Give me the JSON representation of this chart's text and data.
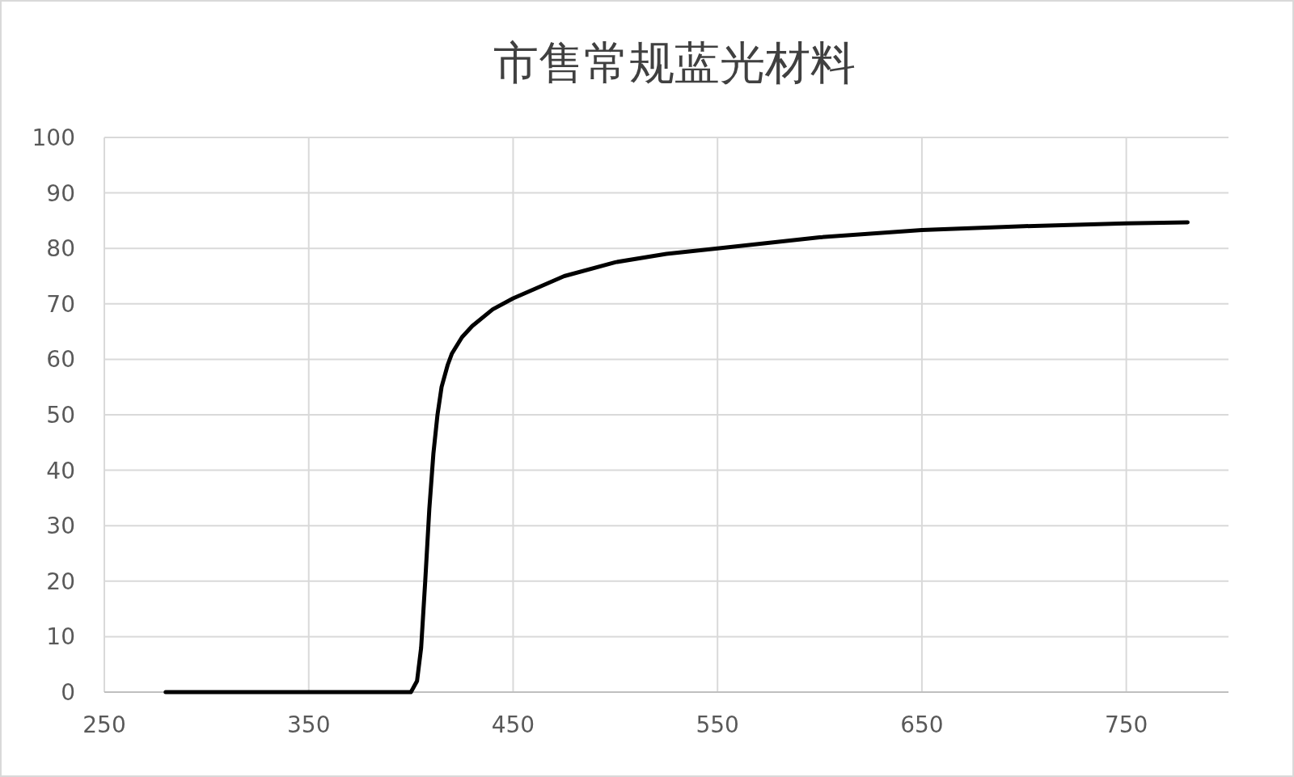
{
  "chart_data": {
    "type": "line",
    "title": "市售常规蓝光材料",
    "x": [
      280,
      320,
      360,
      400,
      403,
      405,
      407,
      409,
      411,
      413,
      415,
      418,
      420,
      425,
      430,
      440,
      450,
      475,
      500,
      525,
      550,
      600,
      650,
      700,
      750,
      780
    ],
    "series": [
      {
        "color": "#000000",
        "values": [
          0,
          0,
          0,
          0,
          2,
          8,
          20,
          33,
          43,
          50,
          55,
          59,
          61,
          64,
          66,
          69,
          71,
          75,
          77.5,
          79,
          80,
          82,
          83.3,
          84,
          84.5,
          84.7
        ]
      }
    ],
    "xlim": [
      250,
      800
    ],
    "xticks": [
      250,
      350,
      450,
      550,
      650,
      750
    ],
    "ylim": [
      0,
      100
    ],
    "yticks": [
      0,
      10,
      20,
      30,
      40,
      50,
      60,
      70,
      80,
      90,
      100
    ],
    "grid": true,
    "marker": "none",
    "line_style": "solid"
  }
}
